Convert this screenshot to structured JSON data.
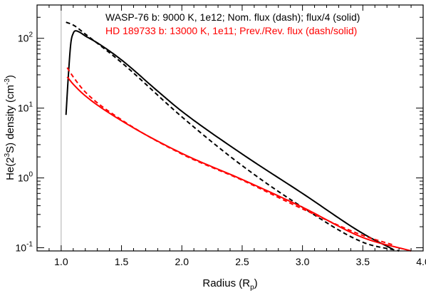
{
  "chart_data": {
    "type": "line",
    "xlabel": {
      "main": "Radius (R",
      "sub": "p",
      "tail": ")"
    },
    "ylabel": {
      "main": "He(2",
      "sup1": "3",
      "mid": "S) density (cm",
      "sup2": "-3",
      "tail": ")"
    },
    "xlim": [
      0.8,
      4.0
    ],
    "ylim": [
      0.09,
      300
    ],
    "y_scale": "log",
    "x_ticks": [
      "1.0",
      "1.5",
      "2.0",
      "2.5",
      "3.0",
      "3.5",
      "4.0"
    ],
    "y_ticks": [
      {
        "base": "10",
        "exp": "-1"
      },
      {
        "base": "10",
        "exp": "0"
      },
      {
        "base": "10",
        "exp": "1"
      },
      {
        "base": "10",
        "exp": "2"
      }
    ],
    "reference_line_x": 1.0,
    "legend": [
      {
        "text": "WASP-76 b: 9000 K, 1e12; Nom. flux (dash); flux/4 (solid)",
        "color": "#000000"
      },
      {
        "text": "HD 189733 b: 13000 K, 1e11; Prev./Rev. flux (dash/solid)",
        "color": "#ff0000"
      }
    ],
    "legend_position": "top-right",
    "series": [
      {
        "color": "#000000",
        "style": "solid",
        "x": [
          1.04,
          1.06,
          1.08,
          1.1,
          1.12,
          1.15,
          1.2,
          1.3,
          1.5,
          1.8,
          2.0,
          2.5,
          3.0,
          3.5,
          3.75
        ],
        "y": [
          8,
          30,
          85,
          118,
          128,
          123,
          108,
          86,
          49,
          17.5,
          9,
          2.2,
          0.6,
          0.16,
          0.095
        ]
      },
      {
        "color": "#000000",
        "style": "dash",
        "x": [
          1.04,
          1.1,
          1.2,
          1.5,
          2.0,
          2.5,
          3.0,
          3.5,
          3.8
        ],
        "y": [
          170,
          155,
          115,
          45,
          7.5,
          1.5,
          0.38,
          0.12,
          0.09
        ]
      },
      {
        "color": "#ff0000",
        "style": "solid",
        "x": [
          1.05,
          1.1,
          1.2,
          1.5,
          2.0,
          2.5,
          3.0,
          3.5,
          3.9
        ],
        "y": [
          28,
          22,
          15,
          6.6,
          2.25,
          0.95,
          0.38,
          0.14,
          0.09
        ]
      },
      {
        "color": "#ff0000",
        "style": "dash",
        "x": [
          1.05,
          1.1,
          1.2,
          1.5,
          2.0,
          2.5,
          3.0,
          3.5,
          3.75
        ],
        "y": [
          38,
          28,
          17,
          6.8,
          2.2,
          0.93,
          0.36,
          0.15,
          0.11
        ]
      }
    ]
  }
}
